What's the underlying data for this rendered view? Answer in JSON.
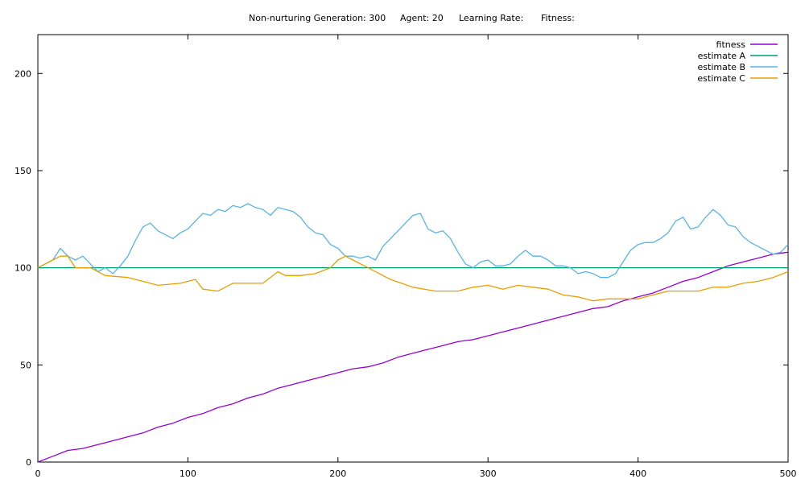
{
  "header": {
    "items": [
      "Non-nurturing Generation: 300",
      "Agent: 20",
      "Learning Rate:",
      "Fitness:"
    ]
  },
  "chart_data": {
    "type": "line",
    "xlim": [
      0,
      500
    ],
    "ylim": [
      0,
      220
    ],
    "x_ticks": [
      0,
      100,
      200,
      300,
      400,
      500
    ],
    "y_ticks": [
      0,
      50,
      100,
      150,
      200
    ],
    "x_tick_labels": [
      "0",
      "100",
      "200",
      "300",
      "400",
      "500"
    ],
    "y_tick_labels": [
      "0",
      "50",
      "100",
      "150",
      "200"
    ],
    "grid": false,
    "legend_position": "top-right",
    "series": [
      {
        "name": "fitness",
        "color": "#9400d3",
        "points": [
          [
            0,
            0
          ],
          [
            10,
            3
          ],
          [
            20,
            6
          ],
          [
            30,
            7
          ],
          [
            40,
            9
          ],
          [
            50,
            11
          ],
          [
            60,
            13
          ],
          [
            70,
            15
          ],
          [
            80,
            18
          ],
          [
            90,
            20
          ],
          [
            100,
            23
          ],
          [
            110,
            25
          ],
          [
            120,
            28
          ],
          [
            130,
            30
          ],
          [
            140,
            33
          ],
          [
            150,
            35
          ],
          [
            160,
            38
          ],
          [
            170,
            40
          ],
          [
            180,
            42
          ],
          [
            190,
            44
          ],
          [
            200,
            46
          ],
          [
            210,
            48
          ],
          [
            220,
            49
          ],
          [
            230,
            51
          ],
          [
            240,
            54
          ],
          [
            250,
            56
          ],
          [
            260,
            58
          ],
          [
            270,
            60
          ],
          [
            280,
            62
          ],
          [
            290,
            63
          ],
          [
            300,
            65
          ],
          [
            310,
            67
          ],
          [
            320,
            69
          ],
          [
            330,
            71
          ],
          [
            340,
            73
          ],
          [
            350,
            75
          ],
          [
            360,
            77
          ],
          [
            370,
            79
          ],
          [
            380,
            80
          ],
          [
            390,
            83
          ],
          [
            400,
            85
          ],
          [
            410,
            87
          ],
          [
            420,
            90
          ],
          [
            430,
            93
          ],
          [
            440,
            95
          ],
          [
            450,
            98
          ],
          [
            460,
            101
          ],
          [
            470,
            103
          ],
          [
            480,
            105
          ],
          [
            490,
            107
          ],
          [
            500,
            108
          ]
        ]
      },
      {
        "name": "estimate A",
        "color": "#009e73",
        "points": [
          [
            0,
            100
          ],
          [
            500,
            100
          ]
        ]
      },
      {
        "name": "estimate B",
        "color": "#56b4e9",
        "points": [
          [
            0,
            100
          ],
          [
            5,
            102
          ],
          [
            10,
            104
          ],
          [
            15,
            110
          ],
          [
            20,
            106
          ],
          [
            25,
            104
          ],
          [
            30,
            106
          ],
          [
            35,
            102
          ],
          [
            40,
            98
          ],
          [
            45,
            100
          ],
          [
            50,
            97
          ],
          [
            55,
            101
          ],
          [
            60,
            106
          ],
          [
            65,
            114
          ],
          [
            70,
            121
          ],
          [
            75,
            123
          ],
          [
            80,
            119
          ],
          [
            85,
            117
          ],
          [
            90,
            115
          ],
          [
            95,
            118
          ],
          [
            100,
            120
          ],
          [
            105,
            124
          ],
          [
            110,
            128
          ],
          [
            115,
            127
          ],
          [
            120,
            130
          ],
          [
            125,
            129
          ],
          [
            130,
            132
          ],
          [
            135,
            131
          ],
          [
            140,
            133
          ],
          [
            145,
            131
          ],
          [
            150,
            130
          ],
          [
            155,
            127
          ],
          [
            160,
            131
          ],
          [
            165,
            130
          ],
          [
            170,
            129
          ],
          [
            175,
            126
          ],
          [
            180,
            121
          ],
          [
            185,
            118
          ],
          [
            190,
            117
          ],
          [
            195,
            112
          ],
          [
            200,
            110
          ],
          [
            205,
            106
          ],
          [
            210,
            106
          ],
          [
            215,
            105
          ],
          [
            220,
            106
          ],
          [
            225,
            104
          ],
          [
            230,
            111
          ],
          [
            235,
            115
          ],
          [
            240,
            119
          ],
          [
            245,
            123
          ],
          [
            250,
            127
          ],
          [
            255,
            128
          ],
          [
            260,
            120
          ],
          [
            265,
            118
          ],
          [
            270,
            119
          ],
          [
            275,
            115
          ],
          [
            280,
            108
          ],
          [
            285,
            102
          ],
          [
            290,
            100
          ],
          [
            295,
            103
          ],
          [
            300,
            104
          ],
          [
            305,
            101
          ],
          [
            310,
            101
          ],
          [
            315,
            102
          ],
          [
            320,
            106
          ],
          [
            325,
            109
          ],
          [
            330,
            106
          ],
          [
            335,
            106
          ],
          [
            340,
            104
          ],
          [
            345,
            101
          ],
          [
            350,
            101
          ],
          [
            355,
            100
          ],
          [
            360,
            97
          ],
          [
            365,
            98
          ],
          [
            370,
            97
          ],
          [
            375,
            95
          ],
          [
            380,
            95
          ],
          [
            385,
            97
          ],
          [
            390,
            103
          ],
          [
            395,
            109
          ],
          [
            400,
            112
          ],
          [
            405,
            113
          ],
          [
            410,
            113
          ],
          [
            415,
            115
          ],
          [
            420,
            118
          ],
          [
            425,
            124
          ],
          [
            430,
            126
          ],
          [
            435,
            120
          ],
          [
            440,
            121
          ],
          [
            445,
            126
          ],
          [
            450,
            130
          ],
          [
            455,
            127
          ],
          [
            460,
            122
          ],
          [
            465,
            121
          ],
          [
            470,
            116
          ],
          [
            475,
            113
          ],
          [
            480,
            111
          ],
          [
            485,
            109
          ],
          [
            490,
            107
          ],
          [
            495,
            108
          ],
          [
            500,
            112
          ]
        ]
      },
      {
        "name": "estimate C",
        "color": "#e69f00",
        "points": [
          [
            0,
            100
          ],
          [
            10,
            104
          ],
          [
            15,
            106
          ],
          [
            20,
            106
          ],
          [
            25,
            100
          ],
          [
            35,
            100
          ],
          [
            45,
            96
          ],
          [
            60,
            95
          ],
          [
            70,
            93
          ],
          [
            80,
            91
          ],
          [
            95,
            92
          ],
          [
            105,
            94
          ],
          [
            110,
            89
          ],
          [
            120,
            88
          ],
          [
            130,
            92
          ],
          [
            150,
            92
          ],
          [
            160,
            98
          ],
          [
            165,
            96
          ],
          [
            175,
            96
          ],
          [
            185,
            97
          ],
          [
            195,
            100
          ],
          [
            200,
            104
          ],
          [
            205,
            106
          ],
          [
            210,
            104
          ],
          [
            220,
            100
          ],
          [
            235,
            94
          ],
          [
            250,
            90
          ],
          [
            265,
            88
          ],
          [
            280,
            88
          ],
          [
            290,
            90
          ],
          [
            300,
            91
          ],
          [
            310,
            89
          ],
          [
            320,
            91
          ],
          [
            330,
            90
          ],
          [
            340,
            89
          ],
          [
            350,
            86
          ],
          [
            360,
            85
          ],
          [
            370,
            83
          ],
          [
            380,
            84
          ],
          [
            390,
            84
          ],
          [
            400,
            84
          ],
          [
            410,
            86
          ],
          [
            420,
            88
          ],
          [
            430,
            88
          ],
          [
            440,
            88
          ],
          [
            450,
            90
          ],
          [
            460,
            90
          ],
          [
            470,
            92
          ],
          [
            480,
            93
          ],
          [
            490,
            95
          ],
          [
            500,
            98
          ]
        ]
      }
    ]
  }
}
